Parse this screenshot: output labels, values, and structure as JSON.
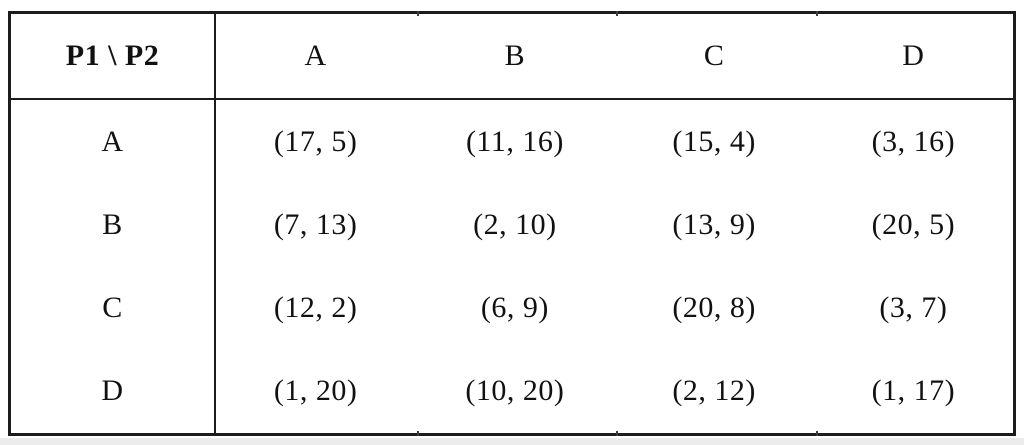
{
  "table": {
    "corner_label": "P1 \\ P2",
    "col_headers": [
      "A",
      "B",
      "C",
      "D"
    ],
    "row_headers": [
      "A",
      "B",
      "C",
      "D"
    ],
    "cells": [
      [
        "(17, 5)",
        "(11, 16)",
        "(15, 4)",
        "(3, 16)"
      ],
      [
        "(7, 13)",
        "(2, 10)",
        "(13, 9)",
        "(20, 5)"
      ],
      [
        "(12, 2)",
        "(6, 9)",
        "(20, 8)",
        "(3, 7)"
      ],
      [
        "(1, 20)",
        "(10, 20)",
        "(2, 12)",
        "(1, 17)"
      ]
    ]
  },
  "chart_data": {
    "type": "table",
    "title": "",
    "row_player": "P1",
    "col_player": "P2",
    "strategies": [
      "A",
      "B",
      "C",
      "D"
    ],
    "payoffs": [
      [
        [
          17,
          5
        ],
        [
          11,
          16
        ],
        [
          15,
          4
        ],
        [
          3,
          16
        ]
      ],
      [
        [
          7,
          13
        ],
        [
          2,
          10
        ],
        [
          13,
          9
        ],
        [
          20,
          5
        ]
      ],
      [
        [
          12,
          2
        ],
        [
          6,
          9
        ],
        [
          20,
          8
        ],
        [
          3,
          7
        ]
      ],
      [
        [
          1,
          20
        ],
        [
          10,
          20
        ],
        [
          2,
          12
        ],
        [
          1,
          17
        ]
      ]
    ]
  },
  "colors": {
    "border": "#1c1c1c",
    "background": "#ffffff",
    "text": "#111111",
    "bottom_strip": "#ececec"
  }
}
